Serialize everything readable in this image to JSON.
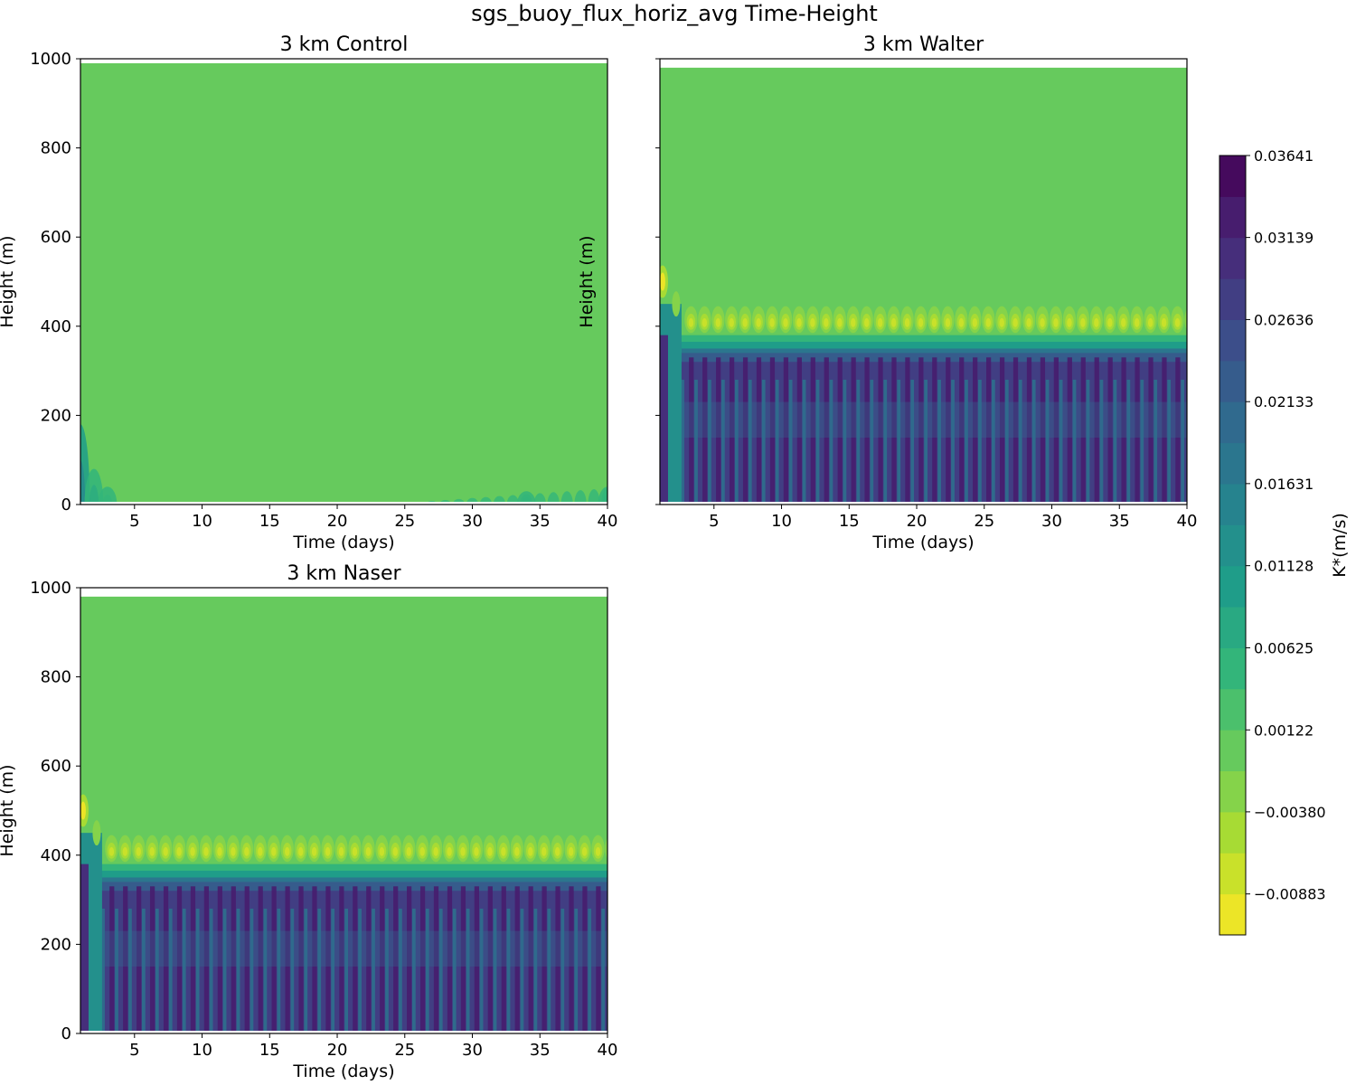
{
  "figure_title": "sgs_buoy_flux_horiz_avg Time-Height",
  "chart_data": [
    {
      "type": "heatmap",
      "panel": "control",
      "title": "3 km Control",
      "xlabel": "Time (days)",
      "ylabel": "Height (m)",
      "xlim": [
        1,
        40
      ],
      "ylim": [
        0,
        1000
      ],
      "xticks": [
        5,
        10,
        15,
        20,
        25,
        30,
        35,
        40
      ],
      "yticks": [
        0,
        200,
        400,
        600,
        800,
        1000
      ],
      "show_ytick_labels": true,
      "data_top_m": 990,
      "background_level": 0.0,
      "features": [
        {
          "time_days": 1.0,
          "height_m": 180,
          "level": 0.01
        },
        {
          "time_days": 2.0,
          "height_m": 80,
          "level": 0.006
        },
        {
          "time_days": 3.0,
          "height_m": 40,
          "level": 0.004
        },
        {
          "time_days": 34.0,
          "height_m": 30,
          "level": 0.004
        },
        {
          "time_days": 40.0,
          "height_m": 40,
          "level": 0.005
        }
      ]
    },
    {
      "type": "heatmap",
      "panel": "walter",
      "title": "3 km Walter",
      "xlabel": "Time (days)",
      "ylabel": "Height (m)",
      "xlim": [
        1,
        40
      ],
      "ylim": [
        0,
        1000
      ],
      "xticks": [
        5,
        10,
        15,
        20,
        25,
        30,
        35,
        40
      ],
      "yticks": [
        0,
        200,
        400,
        600,
        800,
        1000
      ],
      "show_ytick_labels": false,
      "data_top_m": 980,
      "background_level": 0.0,
      "inversion_height_m": 410,
      "inversion_level": -0.008,
      "boundary_layer_top_m": 340,
      "boundary_layer_level": 0.028,
      "initial_peak_height_m": 500,
      "oscillation_period_days": 1.0
    },
    {
      "type": "heatmap",
      "panel": "naser",
      "title": "3 km Naser",
      "xlabel": "Time (days)",
      "ylabel": "Height (m)",
      "xlim": [
        1,
        40
      ],
      "ylim": [
        0,
        1000
      ],
      "xticks": [
        5,
        10,
        15,
        20,
        25,
        30,
        35,
        40
      ],
      "yticks": [
        0,
        200,
        400,
        600,
        800,
        1000
      ],
      "show_ytick_labels": true,
      "data_top_m": 980,
      "background_level": 0.0,
      "inversion_height_m": 410,
      "inversion_level": -0.008,
      "boundary_layer_top_m": 340,
      "boundary_layer_level": 0.028,
      "initial_peak_height_m": 500,
      "oscillation_period_days": 1.0
    }
  ],
  "colorbar": {
    "label": "K*(m/s)",
    "colormap": "viridis_r",
    "min": -0.01134,
    "max": 0.03641,
    "levels_count": 19,
    "ticks": [
      0.03641,
      0.03139,
      0.02636,
      0.02133,
      0.01631,
      0.01128,
      0.00625,
      0.00122,
      -0.0038,
      -0.00883
    ],
    "tick_labels": [
      "0.03641",
      "0.03139",
      "0.02636",
      "0.02133",
      "0.01631",
      "0.01128",
      "0.00625",
      "0.00122",
      "−0.00380",
      "−0.00883"
    ]
  }
}
